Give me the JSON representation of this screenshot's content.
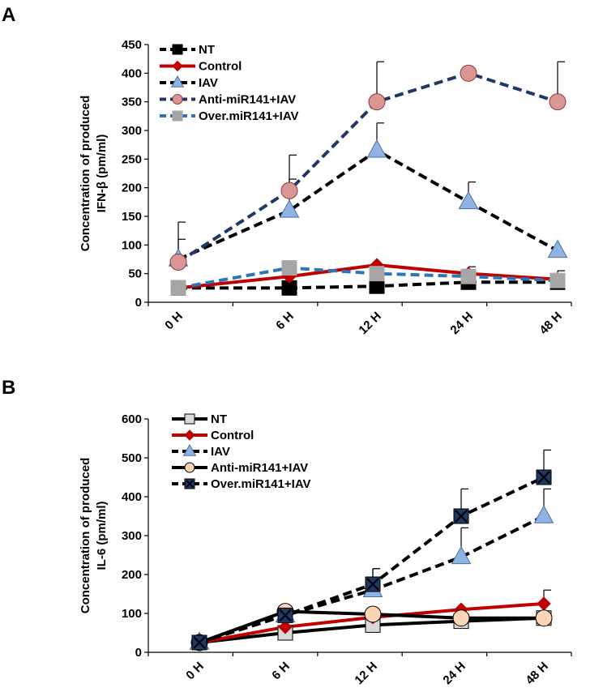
{
  "chart_data": [
    {
      "panel": "A",
      "type": "line",
      "categories": [
        "0 H",
        "6 H",
        "12 H",
        "24  H",
        "48 H"
      ],
      "ylabel_lines": [
        "Concentration of produced",
        "IFN-β (pm/ml)"
      ],
      "yticks": [
        "0",
        "50",
        "100",
        "150",
        "200",
        "250",
        "300",
        "350",
        "400",
        "450"
      ],
      "ylim": [
        0,
        450
      ],
      "legend_position": "top-left",
      "series": [
        {
          "name": "NT",
          "values": [
            25,
            25,
            28,
            35,
            35
          ],
          "errors": [
            0,
            0,
            0,
            0,
            0
          ],
          "color": "#000000",
          "dashed": true,
          "marker": "square",
          "marker_fill": "#000000",
          "marker_stroke": "#000000"
        },
        {
          "name": "Control",
          "values": [
            25,
            45,
            65,
            50,
            40
          ],
          "errors": [
            0,
            0,
            0,
            12,
            15
          ],
          "color": "#c00000",
          "dashed": false,
          "marker": "diamond",
          "marker_fill": "#c00000",
          "marker_stroke": "#c00000"
        },
        {
          "name": "IAV",
          "values": [
            75,
            160,
            265,
            175,
            90
          ],
          "errors": [
            35,
            55,
            48,
            35,
            0
          ],
          "color": "#000000",
          "dashed": true,
          "marker": "triangle",
          "marker_fill": "#8fb4e3",
          "marker_stroke": "#4a6fa5"
        },
        {
          "name": "Anti-miR141+IAV",
          "values": [
            70,
            195,
            350,
            400,
            350
          ],
          "errors": [
            70,
            62,
            70,
            0,
            70
          ],
          "color": "#1f3864",
          "dashed": true,
          "marker": "circle",
          "marker_fill": "#d99694",
          "marker_stroke": "#8b3a3a"
        },
        {
          "name": "Over.miR141+IAV",
          "values": [
            25,
            60,
            50,
            45,
            38
          ],
          "errors": [
            0,
            0,
            0,
            0,
            0
          ],
          "color": "#2e75b6",
          "dashed": true,
          "marker": "square",
          "marker_fill": "#a6a6a6",
          "marker_stroke": "#a6a6a6"
        }
      ]
    },
    {
      "panel": "B",
      "type": "line",
      "categories": [
        "0 H",
        "6 H",
        "12 H",
        "24  H",
        "48 H"
      ],
      "ylabel_lines": [
        "Concentration of produced",
        "IL-6 (pm/ml)"
      ],
      "yticks": [
        "0",
        "100",
        "200",
        "300",
        "400",
        "500",
        "600"
      ],
      "ylim": [
        0,
        600
      ],
      "legend_position": "top-left",
      "series": [
        {
          "name": "NT",
          "values": [
            25,
            50,
            70,
            80,
            88
          ],
          "errors": [
            0,
            0,
            0,
            0,
            0
          ],
          "color": "#000000",
          "dashed": false,
          "marker": "square",
          "marker_fill": "#d9d9d9",
          "marker_stroke": "#000000"
        },
        {
          "name": "Control",
          "values": [
            25,
            65,
            90,
            110,
            125
          ],
          "errors": [
            0,
            0,
            0,
            0,
            35
          ],
          "color": "#c00000",
          "dashed": false,
          "marker": "diamond",
          "marker_fill": "#c00000",
          "marker_stroke": "#c00000"
        },
        {
          "name": "IAV",
          "values": [
            25,
            95,
            160,
            245,
            350
          ],
          "errors": [
            0,
            0,
            55,
            75,
            70
          ],
          "color": "#000000",
          "dashed": true,
          "marker": "triangle",
          "marker_fill": "#8fb4e3",
          "marker_stroke": "#4a6fa5"
        },
        {
          "name": "Anti-miR141+IAV",
          "values": [
            25,
            105,
            98,
            88,
            88
          ],
          "errors": [
            0,
            0,
            0,
            0,
            0
          ],
          "color": "#000000",
          "dashed": false,
          "marker": "circle",
          "marker_fill": "#fbd5b5",
          "marker_stroke": "#000000"
        },
        {
          "name": "Over.miR141+IAV",
          "values": [
            25,
            95,
            175,
            350,
            450
          ],
          "errors": [
            0,
            0,
            40,
            70,
            70
          ],
          "color": "#000000",
          "dashed": true,
          "marker": "xsquare",
          "marker_fill": "#1f3864",
          "marker_stroke": "#000000"
        }
      ]
    }
  ]
}
